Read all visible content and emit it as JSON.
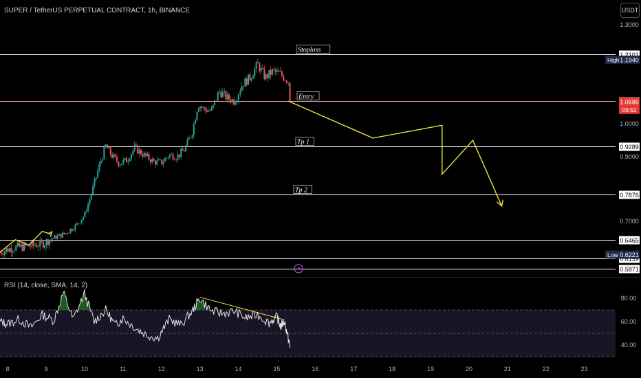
{
  "header": {
    "symbol_title": "SUPER / TetherUS PERPETUAL CONTRACT, 1h, BINANCE",
    "currency": "USDT",
    "rsi_label": "RSI (14, close, SMA, 14, 2)"
  },
  "colors": {
    "background": "#000000",
    "candle_up": "#26a69a",
    "candle_down": "#ef5350",
    "drawing": "#f0e442",
    "level_line": "#ffffff",
    "entry_line": "#f0a0a0",
    "rsi_line": "#e6e6e6",
    "rsi_band": "#1a1526",
    "rsi_overbought_fill": "#2e7d32",
    "current_price_bg": "#e53935",
    "lightning_icon": "#b44cd6"
  },
  "chart_data": [
    {
      "type": "candlestick",
      "title": "SUPER / TetherUS PERPETUAL CONTRACT, 1h, BINANCE",
      "x_axis": {
        "ticks": [
          "8",
          "9",
          "10",
          "11",
          "12",
          "13",
          "14",
          "15",
          "16",
          "17",
          "18",
          "19",
          "20",
          "21",
          "22",
          "23"
        ]
      },
      "y_axis": {
        "scale": "linear",
        "range": [
          0.58,
          1.33
        ],
        "ticks": [
          "1.3000",
          "1.0000",
          "0.9000",
          "0.7000"
        ],
        "position": "right"
      },
      "price_path": {
        "x": [
          7.8,
          8.1,
          8.5,
          8.9,
          9.2,
          9.5,
          9.8,
          10.0,
          10.2,
          10.4,
          10.55,
          10.7,
          10.9,
          11.1,
          11.3,
          11.6,
          11.8,
          12.0,
          12.2,
          12.4,
          12.6,
          12.8,
          12.95,
          13.1,
          13.3,
          13.5,
          13.7,
          13.9,
          14.1,
          14.3,
          14.5,
          14.7,
          14.9,
          15.1,
          15.3,
          15.35
        ],
        "y": [
          0.626,
          0.633,
          0.636,
          0.64,
          0.652,
          0.665,
          0.69,
          0.72,
          0.8,
          0.88,
          0.93,
          0.905,
          0.88,
          0.89,
          0.925,
          0.9,
          0.885,
          0.882,
          0.905,
          0.9,
          0.92,
          0.975,
          1.06,
          1.045,
          1.04,
          1.1,
          1.08,
          1.07,
          1.12,
          1.14,
          1.18,
          1.14,
          1.16,
          1.15,
          1.13,
          1.069
        ]
      },
      "levels": [
        {
          "value": "1.2101",
          "label": "Stoploss"
        },
        {
          "value": "1.0703",
          "label": "Entry"
        },
        {
          "value": "0.9289",
          "label": "Tp 1"
        },
        {
          "value": "0.7876",
          "label": "Tp 2"
        },
        {
          "value": "0.6465",
          "label": ""
        },
        {
          "value": "0.6159",
          "label": ""
        },
        {
          "value": "0.5871",
          "label": ""
        }
      ],
      "markers": [
        {
          "tag": "High",
          "value": "1.1940"
        },
        {
          "tag": "Low",
          "value": "0.6221"
        }
      ],
      "current_price": {
        "value": "1.0686",
        "countdown": "09:52"
      },
      "projection": {
        "x": [
          15.3,
          17.5,
          19.3,
          19.3,
          20.1,
          20.85
        ],
        "y": [
          1.07,
          0.955,
          0.995,
          0.848,
          0.948,
          0.75
        ]
      },
      "early_move": {
        "x": [
          7.8,
          8.2,
          8.55,
          8.9,
          9.15
        ],
        "y": [
          0.626,
          0.647,
          0.638,
          0.671,
          0.662
        ]
      }
    },
    {
      "type": "line",
      "title": "RSI (14, close, SMA, 14, 2)",
      "y_axis": {
        "range": [
          34,
          92
        ],
        "ticks": [
          "80.00",
          "60.00",
          "40.00"
        ],
        "bands": [
          70,
          30
        ]
      },
      "series": [
        {
          "x": [
            7.8,
            8.0,
            8.3,
            8.6,
            8.9,
            9.2,
            9.45,
            9.7,
            10.0,
            10.25,
            10.55,
            10.8,
            11.0,
            11.3,
            11.6,
            11.9,
            12.2,
            12.5,
            12.8,
            13.0,
            13.3,
            13.6,
            13.9,
            14.2,
            14.5,
            14.8,
            15.0,
            15.1,
            15.2,
            15.3,
            15.35
          ],
          "y": [
            60,
            58,
            62,
            55,
            66,
            61,
            85,
            62,
            84,
            60,
            70,
            57,
            63,
            55,
            49,
            46,
            62,
            57,
            69,
            80,
            69,
            67,
            69,
            63,
            66,
            59,
            64,
            56,
            60,
            45,
            38
          ]
        }
      ],
      "trendline": {
        "x": [
          13.0,
          15.2
        ],
        "y": [
          81,
          61.5
        ]
      }
    }
  ]
}
